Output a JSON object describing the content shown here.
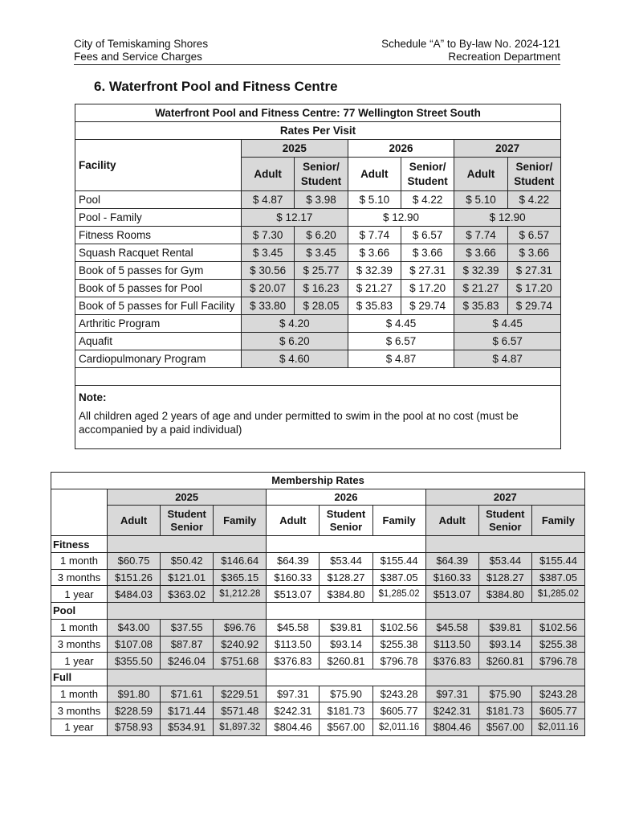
{
  "header": {
    "left_line1": "City of Temiskaming Shores",
    "left_line2": "Fees and Service Charges",
    "right_line1": "Schedule “A” to By-law No. 2024-121",
    "right_line2": "Recreation Department"
  },
  "section_title": "6.  Waterfront Pool and Fitness Centre",
  "shading_color": "#d9d9d9",
  "visit_table": {
    "title": "Waterfront Pool and Fitness Centre: 77 Wellington Street South",
    "subtitle": "Rates Per Visit",
    "facility_header": "Facility",
    "years": [
      "2025",
      "2026",
      "2027"
    ],
    "col_adult": "Adult",
    "col_senior": "Senior/ Student",
    "rows": [
      {
        "facility": "Pool",
        "values": [
          "$ 4.87",
          "$ 3.98",
          "$ 5.10",
          "$ 4.22",
          "$ 5.10",
          "$ 4.22"
        ]
      },
      {
        "facility": "Pool - Family",
        "values": [
          "$ 12.17",
          "$ 12.90",
          "$ 12.90"
        ]
      },
      {
        "facility": "Fitness Rooms",
        "values": [
          "$ 7.30",
          "$ 6.20",
          "$ 7.74",
          "$ 6.57",
          "$ 7.74",
          "$ 6.57"
        ]
      },
      {
        "facility": "Squash Racquet Rental",
        "values": [
          "$ 3.45",
          "$ 3.45",
          "$ 3.66",
          "$ 3.66",
          "$ 3.66",
          "$ 3.66"
        ]
      },
      {
        "facility": "Book of 5 passes for Gym",
        "values": [
          "$ 30.56",
          "$ 25.77",
          "$ 32.39",
          "$ 27.31",
          "$ 32.39",
          "$ 27.31"
        ]
      },
      {
        "facility": "Book of 5 passes for Pool",
        "values": [
          "$ 20.07",
          "$ 16.23",
          "$ 21.27",
          "$ 17.20",
          "$ 21.27",
          "$ 17.20"
        ]
      },
      {
        "facility": "Book of 5 passes for Full Facility",
        "values": [
          "$ 33.80",
          "$ 28.05",
          "$ 35.83",
          "$ 29.74",
          "$ 35.83",
          "$ 29.74"
        ]
      },
      {
        "facility": "Arthritic Program",
        "values": [
          "$ 4.20",
          "$ 4.45",
          "$ 4.45"
        ]
      },
      {
        "facility": "Aquafit",
        "values": [
          "$ 6.20",
          "$ 6.57",
          "$ 6.57"
        ]
      },
      {
        "facility": "Cardiopulmonary Program",
        "values": [
          "$ 4.60",
          "$ 4.87",
          "$ 4.87"
        ]
      }
    ],
    "note_label": "Note:",
    "note_text": "All children aged 2 years of age and under permitted to swim in the pool at no cost (must be accompanied by a paid individual)"
  },
  "membership_table": {
    "title": "Membership Rates",
    "years": [
      "2025",
      "2026",
      "2027"
    ],
    "columns": [
      "Adult",
      "Student Senior",
      "Family"
    ],
    "groups": [
      {
        "name": "Fitness",
        "rows": [
          {
            "period": "1 month",
            "values": [
              "$60.75",
              "$50.42",
              "$146.64",
              "$64.39",
              "$53.44",
              "$155.44",
              "$64.39",
              "$53.44",
              "$155.44"
            ]
          },
          {
            "period": "3 months",
            "values": [
              "$151.26",
              "$121.01",
              "$365.15",
              "$160.33",
              "$128.27",
              "$387.05",
              "$160.33",
              "$128.27",
              "$387.05"
            ]
          },
          {
            "period": "1 year",
            "values": [
              "$484.03",
              "$363.02",
              "$1,212.28",
              "$513.07",
              "$384.80",
              "$1,285.02",
              "$513.07",
              "$384.80",
              "$1,285.02"
            ]
          }
        ]
      },
      {
        "name": "Pool",
        "rows": [
          {
            "period": "1 month",
            "values": [
              "$43.00",
              "$37.55",
              "$96.76",
              "$45.58",
              "$39.81",
              "$102.56",
              "$45.58",
              "$39.81",
              "$102.56"
            ]
          },
          {
            "period": "3 months",
            "values": [
              "$107.08",
              "$87.87",
              "$240.92",
              "$113.50",
              "$93.14",
              "$255.38",
              "$113.50",
              "$93.14",
              "$255.38"
            ]
          },
          {
            "period": "1 year",
            "values": [
              "$355.50",
              "$246.04",
              "$751.68",
              "$376.83",
              "$260.81",
              "$796.78",
              "$376.83",
              "$260.81",
              "$796.78"
            ]
          }
        ]
      },
      {
        "name": "Full",
        "rows": [
          {
            "period": "1 month",
            "values": [
              "$91.80",
              "$71.61",
              "$229.51",
              "$97.31",
              "$75.90",
              "$243.28",
              "$97.31",
              "$75.90",
              "$243.28"
            ]
          },
          {
            "period": "3 months",
            "values": [
              "$228.59",
              "$171.44",
              "$571.48",
              "$242.31",
              "$181.73",
              "$605.77",
              "$242.31",
              "$181.73",
              "$605.77"
            ]
          },
          {
            "period": "1 year",
            "values": [
              "$758.93",
              "$534.91",
              "$1,897.32",
              "$804.46",
              "$567.00",
              "$2,011.16",
              "$804.46",
              "$567.00",
              "$2,011.16"
            ]
          }
        ]
      }
    ]
  }
}
